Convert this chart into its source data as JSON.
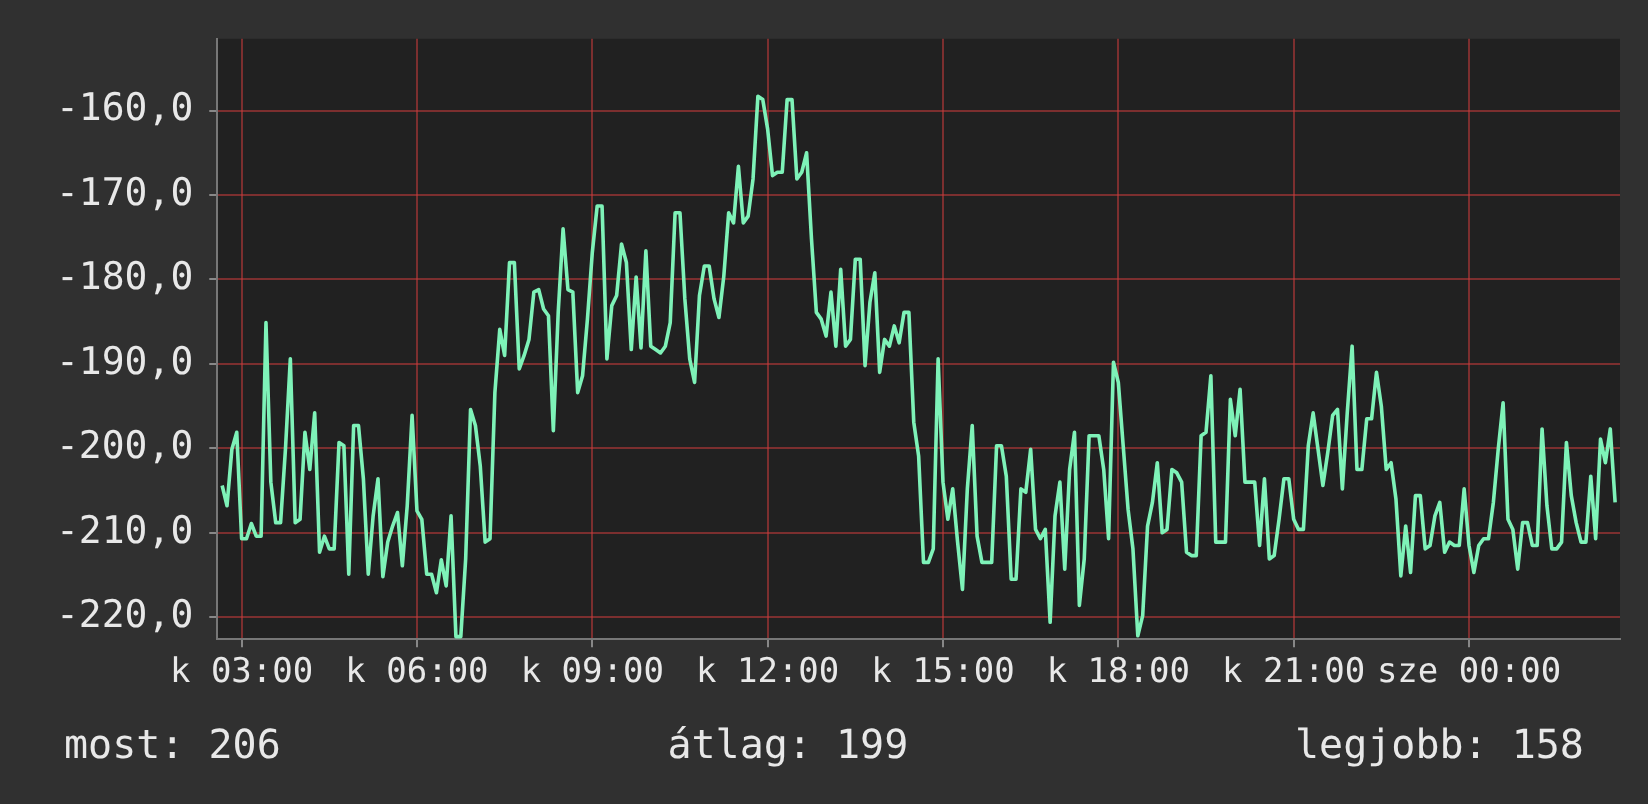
{
  "chart_data": {
    "type": "line",
    "categories": [
      null,
      null,
      null,
      null,
      null,
      "k 03:00",
      null,
      null,
      null,
      null,
      null,
      null,
      null,
      null,
      null,
      null,
      null,
      null,
      null,
      null,
      null,
      null,
      null,
      null,
      null,
      null,
      null,
      null,
      null,
      null,
      null,
      null,
      null,
      null,
      null,
      null,
      null,
      null,
      null,
      null,
      null,
      "k 06:00",
      null,
      null,
      null,
      null,
      null,
      null,
      null,
      null,
      null,
      null,
      null,
      null,
      null,
      null,
      null,
      null,
      null,
      null,
      null,
      null,
      null,
      null,
      null,
      null,
      null,
      null,
      null,
      null,
      null,
      null,
      null,
      null,
      null,
      null,
      null,
      "k 09:00",
      null,
      null,
      null,
      null,
      null,
      null,
      null,
      null,
      null,
      null,
      null,
      null,
      null,
      null,
      null,
      null,
      null,
      null,
      null,
      null,
      null,
      null,
      null,
      null,
      null,
      null,
      null,
      null,
      null,
      null,
      null,
      null,
      null,
      null,
      null,
      "k 12:00",
      null,
      null,
      null,
      null,
      null,
      null,
      null,
      null,
      null,
      null,
      null,
      null,
      null,
      null,
      null,
      null,
      null,
      null,
      null,
      null,
      null,
      null,
      null,
      null,
      null,
      null,
      null,
      null,
      null,
      null,
      null,
      null,
      null,
      null,
      null,
      "k 15:00",
      null,
      null,
      null,
      null,
      null,
      null,
      null,
      null,
      null,
      null,
      null,
      null,
      null,
      null,
      null,
      null,
      null,
      null,
      null,
      null,
      null,
      null,
      null,
      null,
      null,
      null,
      null,
      null,
      null,
      null,
      null,
      null,
      null,
      null,
      null,
      "k 18:00",
      null,
      null,
      null,
      null,
      null,
      null,
      null,
      null,
      null,
      null,
      null,
      null,
      null,
      null,
      null,
      null,
      null,
      null,
      null,
      null,
      null,
      null,
      null,
      null,
      null,
      null,
      null,
      null,
      null,
      null,
      null,
      null,
      null,
      null,
      null,
      "k 21:00",
      null,
      null,
      null,
      null,
      null,
      null,
      null,
      null,
      null,
      null,
      null,
      null,
      null,
      null,
      null,
      null,
      null,
      null,
      null,
      null,
      null,
      null,
      null,
      null,
      null,
      null,
      null,
      null,
      null,
      null,
      null,
      null,
      null,
      null,
      null,
      "sze 00:00",
      null,
      null,
      null,
      null,
      null,
      null,
      null,
      null,
      null,
      null,
      null,
      null,
      null,
      null,
      null,
      null,
      null,
      null,
      null,
      null,
      null,
      null,
      null,
      null,
      null,
      null,
      null,
      null,
      null,
      null,
      null
    ],
    "values": [
      null,
      -204.4,
      -206.8,
      -200.1,
      -198.1,
      -210.7,
      -210.7,
      -208.9,
      -210.4,
      -210.4,
      -185.1,
      -204.0,
      -208.8,
      -208.8,
      -200.1,
      -189.4,
      -208.8,
      -208.4,
      -198.1,
      -202.5,
      -195.8,
      -212.3,
      -210.4,
      -211.9,
      -211.9,
      -199.3,
      -199.7,
      -214.9,
      -197.3,
      -197.3,
      -203.6,
      -214.9,
      -208.0,
      -203.6,
      -215.2,
      -211.1,
      -209.2,
      -207.6,
      -213.9,
      -206.8,
      -196.1,
      -207.4,
      -208.4,
      -214.9,
      -214.9,
      -217.1,
      -213.2,
      -216.3,
      -208.0,
      -222.3,
      -222.3,
      -213.1,
      -195.4,
      -197.3,
      -202.1,
      -211.1,
      -210.7,
      -193.4,
      -185.9,
      -189.0,
      -178.0,
      -178.0,
      -190.6,
      -189.0,
      -187.1,
      -181.5,
      -181.2,
      -183.5,
      -184.3,
      -197.9,
      -183.9,
      -174.0,
      -181.2,
      -181.5,
      -193.4,
      -191.4,
      -184.7,
      -176.8,
      -171.3,
      -171.3,
      -189.4,
      -183.1,
      -181.9,
      -175.8,
      -178.0,
      -188.3,
      -179.7,
      -188.1,
      -176.6,
      -187.9,
      -188.3,
      -188.7,
      -187.9,
      -185.1,
      -172.1,
      -172.1,
      -182.3,
      -189.4,
      -192.2,
      -181.9,
      -178.4,
      -178.4,
      -182.3,
      -184.5,
      -179.6,
      -172.1,
      -173.3,
      -166.6,
      -173.3,
      -172.5,
      -168.1,
      -158.3,
      -158.7,
      -162.2,
      -167.7,
      -167.3,
      -167.3,
      -158.7,
      -158.7,
      -168.1,
      -167.3,
      -165.0,
      -175.2,
      -183.9,
      -184.7,
      -186.7,
      -181.5,
      -187.9,
      -178.8,
      -187.9,
      -187.1,
      -177.6,
      -177.6,
      -190.2,
      -182.7,
      -179.2,
      -191.0,
      -187.1,
      -187.9,
      -185.5,
      -187.5,
      -183.9,
      -183.9,
      -196.9,
      -200.9,
      -213.5,
      -213.5,
      -211.9,
      -189.4,
      -204.0,
      -208.4,
      -204.8,
      -211.1,
      -216.7,
      -204.8,
      -197.3,
      -210.4,
      -213.5,
      -213.5,
      -213.5,
      -199.7,
      -199.7,
      -203.3,
      -215.5,
      -215.5,
      -204.8,
      -205.2,
      -200.1,
      -209.6,
      -210.7,
      -209.6,
      -220.6,
      -208.0,
      -204.0,
      -214.3,
      -202.5,
      -198.1,
      -218.6,
      -213.1,
      -198.5,
      -198.5,
      -198.5,
      -202.5,
      -210.7,
      -189.8,
      -192.2,
      -199.7,
      -207.2,
      -211.9,
      -222.2,
      -219.8,
      -209.2,
      -206.4,
      -201.7,
      -210.0,
      -209.6,
      -202.5,
      -202.9,
      -204.0,
      -212.3,
      -212.7,
      -212.7,
      -198.5,
      -198.1,
      -191.4,
      -211.1,
      -211.1,
      -211.1,
      -194.2,
      -198.5,
      -193.0,
      -204.0,
      -204.0,
      -204.0,
      -211.5,
      -203.6,
      -213.1,
      -212.7,
      -208.4,
      -203.6,
      -203.6,
      -208.4,
      -209.6,
      -209.6,
      -199.7,
      -195.8,
      -200.1,
      -204.4,
      -200.5,
      -196.1,
      -195.4,
      -204.8,
      -195.8,
      -187.9,
      -202.5,
      -202.5,
      -196.5,
      -196.5,
      -191.0,
      -195.0,
      -202.5,
      -201.7,
      -206.0,
      -215.1,
      -209.2,
      -214.7,
      -205.6,
      -205.6,
      -211.9,
      -211.5,
      -208.0,
      -206.4,
      -212.3,
      -211.1,
      -211.5,
      -211.5,
      -204.8,
      -211.5,
      -214.7,
      -211.5,
      -210.7,
      -210.7,
      -206.4,
      -200.1,
      -194.6,
      -208.4,
      -209.6,
      -214.3,
      -208.8,
      -208.8,
      -211.5,
      -211.5,
      -197.7,
      -206.8,
      -211.9,
      -211.9,
      -211.1,
      -199.3,
      -205.6,
      -208.8,
      -211.1,
      -211.1,
      -203.3,
      -210.7,
      -198.9,
      -201.7,
      -197.7,
      -206.4,
      null
    ],
    "color": "#7ef2b8",
    "ylim": [
      -222.6,
      -151.5
    ],
    "yticks": [
      {
        "value": -220,
        "label": "-220,0"
      },
      {
        "value": -210,
        "label": "-210,0"
      },
      {
        "value": -200,
        "label": "-200,0"
      },
      {
        "value": -190,
        "label": "-190,0"
      },
      {
        "value": -180,
        "label": "-180,0"
      },
      {
        "value": -170,
        "label": "-170,0"
      },
      {
        "value": -160,
        "label": "-160,0"
      }
    ],
    "grid": true,
    "marker": "none",
    "line_style": "solid",
    "annotations": [
      "most: 206",
      "átlag: 199",
      "legjobb: 158"
    ]
  }
}
